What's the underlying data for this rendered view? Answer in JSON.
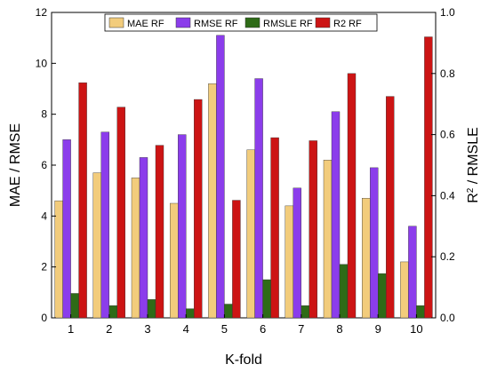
{
  "chart_data": {
    "type": "bar",
    "title": "",
    "categories": [
      "1",
      "2",
      "3",
      "4",
      "5",
      "6",
      "7",
      "8",
      "9",
      "10"
    ],
    "xlabel": "K-fold",
    "ylabel_left": "MAE / RMSE",
    "ylabel_right_base": "R",
    "ylabel_right_sup": "2",
    "ylabel_right_rest": " / RMSLE",
    "ylim_left": [
      0,
      12
    ],
    "ylim_right": [
      0,
      1.0
    ],
    "yticks_left": [
      "0",
      "2",
      "4",
      "6",
      "8",
      "10",
      "12"
    ],
    "yticks_right": [
      "0.0",
      "0.2",
      "0.4",
      "0.6",
      "0.8",
      "1.0"
    ],
    "grid": false,
    "legend_position": "top-center",
    "series": [
      {
        "name": "MAE RF",
        "axis": "left",
        "color": "#F2CC7C",
        "values": [
          4.6,
          5.7,
          5.5,
          4.5,
          9.2,
          6.6,
          4.4,
          6.2,
          4.7,
          2.2
        ]
      },
      {
        "name": "RMSE RF",
        "axis": "left",
        "color": "#8B3DEB",
        "values": [
          7.0,
          7.3,
          6.3,
          7.2,
          11.1,
          9.4,
          5.1,
          8.1,
          5.9,
          3.6
        ]
      },
      {
        "name": "RMSLE RF",
        "axis": "right",
        "color": "#2E6B17",
        "values": [
          0.08,
          0.04,
          0.06,
          0.03,
          0.045,
          0.125,
          0.04,
          0.175,
          0.145,
          0.04
        ]
      },
      {
        "name": "R2 RF",
        "axis": "right",
        "color": "#CC1414",
        "values": [
          0.77,
          0.69,
          0.565,
          0.715,
          0.385,
          0.59,
          0.58,
          0.8,
          0.725,
          0.92
        ]
      }
    ]
  }
}
